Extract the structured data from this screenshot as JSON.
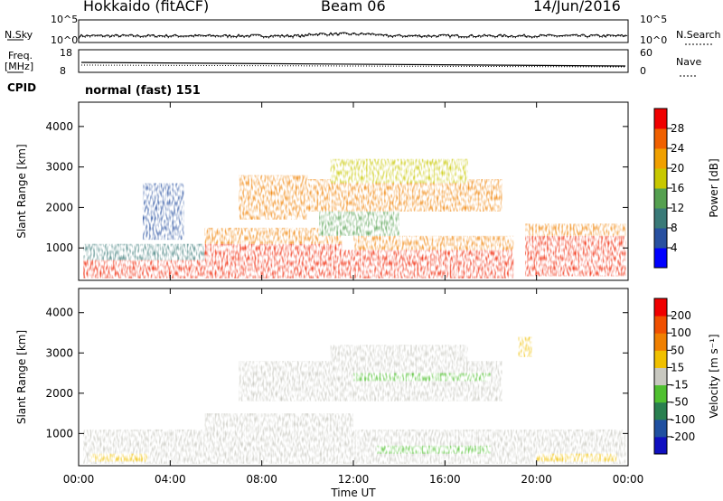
{
  "header": {
    "station": "Hokkaido (fitACF)",
    "beam": "Beam 06",
    "date": "14/Jun/2016"
  },
  "noise_panel": {
    "left_label": "N.Sky",
    "right_label": "N.Search",
    "ticks_left": [
      "10^5",
      "10^0"
    ],
    "ticks_right": [
      "10^5",
      "10^0"
    ]
  },
  "freq_panel": {
    "left_label_line1": "Freq.",
    "left_label_line2": "[MHz]",
    "ticks_left": [
      "18",
      "8"
    ],
    "right_label": "Nave",
    "ticks_right": [
      "60",
      "0"
    ]
  },
  "cpid": {
    "label": "CPID",
    "text": "normal (fast) 151"
  },
  "chart_data": [
    {
      "type": "heatmap",
      "name": "power",
      "ylabel": "Slant Range [km]",
      "yticks": [
        "1000",
        "2000",
        "3000",
        "4000"
      ],
      "ylim": [
        200,
        4600
      ],
      "colorbar_label": "Power [dB]",
      "colorbar_ticks": [
        "4",
        "8",
        "12",
        "16",
        "20",
        "24",
        "28"
      ],
      "colorbar_colors": [
        "#0000ff",
        "#2850a0",
        "#3a7a78",
        "#55a050",
        "#c8c800",
        "#f0a000",
        "#f06000",
        "#f00000"
      ],
      "clim": [
        0,
        32
      ]
    },
    {
      "type": "heatmap",
      "name": "velocity",
      "ylabel": "Slant Range [km]",
      "yticks": [
        "1000",
        "2000",
        "3000",
        "4000"
      ],
      "ylim": [
        200,
        4600
      ],
      "colorbar_label": "Velocity [m s⁻¹]",
      "colorbar_ticks": [
        "200",
        "100",
        "50",
        "15",
        "-15",
        "-50",
        "-100",
        "-200"
      ],
      "colorbar_colors": [
        "#1010c0",
        "#2050a0",
        "#2a8050",
        "#50c030",
        "#c8c8c0",
        "#f0c000",
        "#f08000",
        "#f05000",
        "#f00000"
      ],
      "clim": [
        -250,
        250
      ]
    }
  ],
  "xaxis": {
    "ticks": [
      "00:00",
      "04:00",
      "08:00",
      "12:00",
      "16:00",
      "20:00",
      "00:00"
    ],
    "label": "Time UT"
  }
}
